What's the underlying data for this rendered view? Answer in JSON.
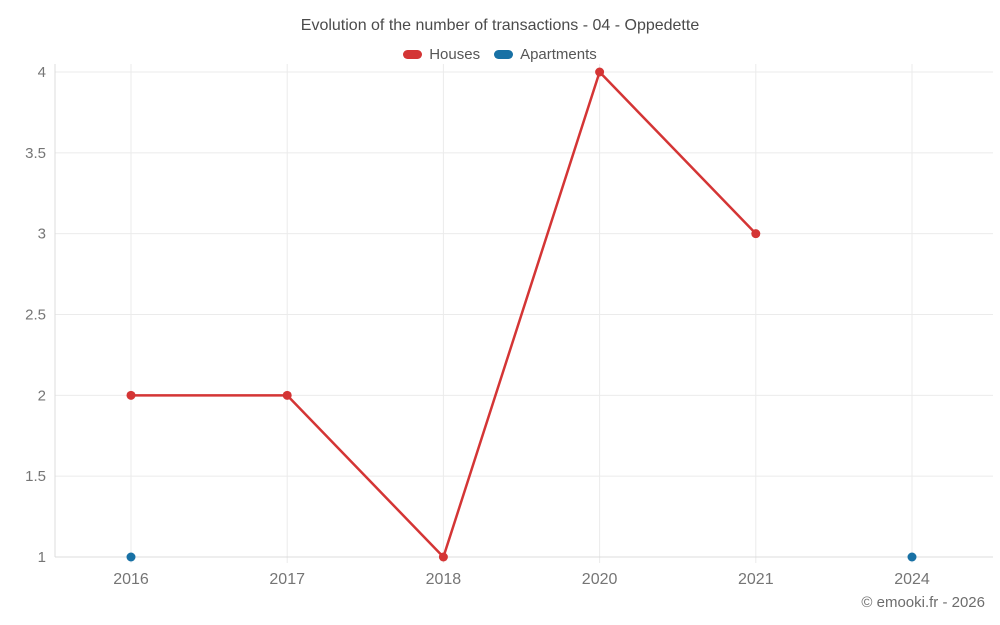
{
  "title": "Evolution of the number of transactions - 04 - Oppedette",
  "legend": {
    "items": [
      {
        "label": "Houses",
        "color": "#d43535"
      },
      {
        "label": "Apartments",
        "color": "#1871a5"
      }
    ]
  },
  "copyright": "© emooki.fr - 2026",
  "colors": {
    "houses": "#d43535",
    "apartments": "#1871a5",
    "gridline": "#ebebeb",
    "axis": "#dcdcdc",
    "tick_text": "#757575"
  },
  "chart_data": {
    "type": "line",
    "title": "Evolution of the number of transactions - 04 - Oppedette",
    "categories": [
      "2016",
      "2017",
      "2018",
      "2020",
      "2021",
      "2024"
    ],
    "series": [
      {
        "name": "Houses",
        "color": "#d43535",
        "marker": true,
        "line": true,
        "values": [
          2,
          2,
          1,
          4,
          3,
          null
        ]
      },
      {
        "name": "Apartments",
        "color": "#1871a5",
        "marker": true,
        "line": false,
        "values": [
          1,
          null,
          null,
          null,
          null,
          1
        ]
      }
    ],
    "xlabel": "",
    "ylabel": "",
    "ylim": [
      1,
      4
    ],
    "yticks": [
      1,
      1.5,
      2,
      2.5,
      3,
      3.5,
      4
    ],
    "grid": true,
    "legend_position": "top"
  }
}
